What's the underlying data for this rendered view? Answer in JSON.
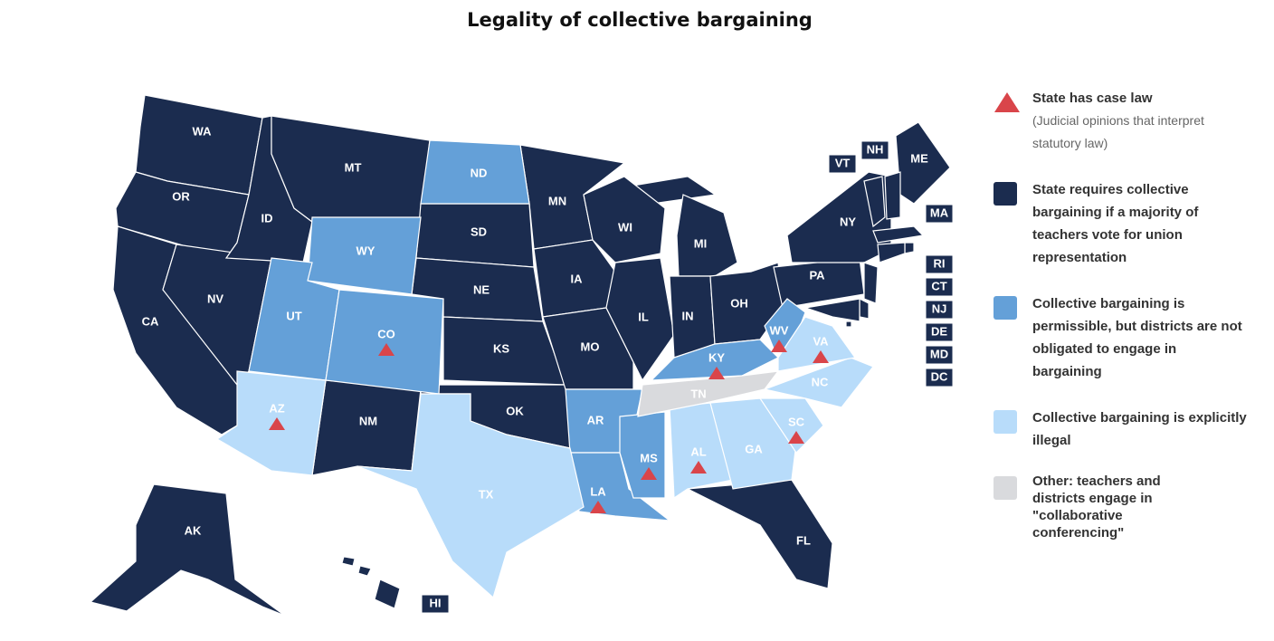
{
  "title": "Legality of collective bargaining",
  "legend": {
    "case_law": {
      "label": "State has case law",
      "note": "(Judicial opinions that interpret statutory law)",
      "color": "#d9454a",
      "states": [
        "CO",
        "AZ",
        "KY",
        "WV",
        "VA",
        "SC",
        "MS",
        "AL",
        "LA"
      ]
    },
    "categories": [
      {
        "label": "State requires collective bargaining if a majority of teachers vote for union representation",
        "color": "#1b2c4f",
        "states": [
          "WA",
          "OR",
          "CA",
          "NV",
          "ID",
          "MT",
          "NM",
          "MN",
          "SD",
          "NE",
          "KS",
          "OK",
          "IA",
          "MO",
          "WI",
          "IL",
          "MI",
          "IN",
          "OH",
          "FL",
          "PA",
          "NY",
          "ME",
          "VT",
          "NH",
          "MA",
          "RI",
          "CT",
          "NJ",
          "DE",
          "MD",
          "DC",
          "AK",
          "HI"
        ]
      },
      {
        "label": "Collective bargaining is permissible, but districts are not obligated to engage in bargaining",
        "color": "#64a0d8",
        "states": [
          "ND",
          "WY",
          "UT",
          "CO",
          "AR",
          "LA",
          "MS",
          "KY",
          "WV"
        ]
      },
      {
        "label": "Collective bargaining is explicitly illegal",
        "color": "#b8dcfa",
        "states": [
          "AZ",
          "TX",
          "AL",
          "GA",
          "SC",
          "NC",
          "VA"
        ]
      },
      {
        "label": "Other: teachers and districts engage in \"collaborative conferencing\"",
        "color": "#d9dadd",
        "states": [
          "TN"
        ]
      }
    ]
  }
}
